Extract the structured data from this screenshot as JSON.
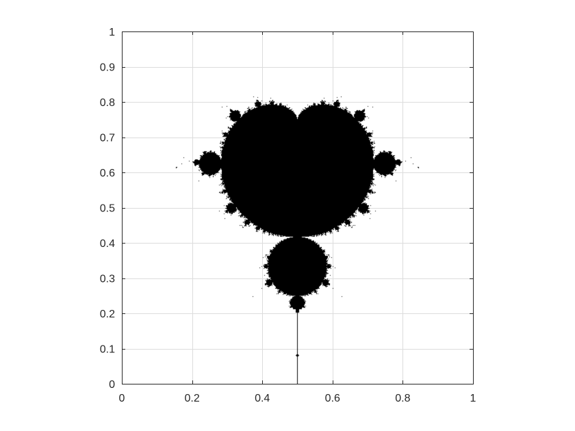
{
  "chart_data": {
    "type": "scatter",
    "title": "",
    "xlabel": "",
    "ylabel": "",
    "xlim": [
      0,
      1
    ],
    "ylim": [
      0,
      1
    ],
    "grid": true,
    "box": true,
    "x_ticks": [
      "0",
      "0.2",
      "0.4",
      "0.6",
      "0.8",
      "1"
    ],
    "y_ticks": [
      "0",
      "0.1",
      "0.2",
      "0.3",
      "0.4",
      "0.5",
      "0.6",
      "0.7",
      "0.8",
      "0.9",
      "1"
    ],
    "x_tick_values": [
      0,
      0.2,
      0.4,
      0.6,
      0.8,
      1
    ],
    "y_tick_values": [
      0,
      0.1,
      0.2,
      0.3,
      0.4,
      0.5,
      0.6,
      0.7,
      0.8,
      0.9,
      1
    ],
    "fractal": {
      "description": "Mandelbrot set",
      "fill_color": "#000000",
      "background_color": "#ffffff",
      "complex_window": {
        "re": [
          -2,
          1
        ],
        "im": [
          -1.5,
          1.5
        ]
      },
      "orientation": "real axis vertical, imaginary axis horizontal",
      "max_iterations": 80
    }
  }
}
